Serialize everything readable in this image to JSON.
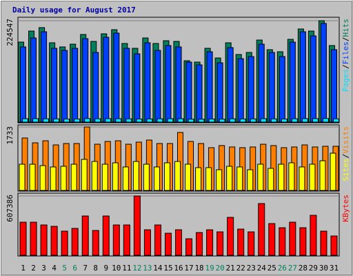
{
  "chart_data": {
    "type": "bar",
    "title": "Daily usage for August 2017",
    "categories": [
      "1",
      "2",
      "3",
      "4",
      "5",
      "6",
      "7",
      "8",
      "9",
      "10",
      "11",
      "12",
      "13",
      "14",
      "15",
      "16",
      "17",
      "18",
      "19",
      "20",
      "21",
      "22",
      "23",
      "24",
      "25",
      "26",
      "27",
      "28",
      "29",
      "30",
      "31"
    ],
    "label_colors": [
      "#000000",
      "#000000",
      "#000000",
      "#000000",
      "#00805c",
      "#00805c",
      "#000000",
      "#000000",
      "#000000",
      "#000000",
      "#000000",
      "#00805c",
      "#00805c",
      "#000000",
      "#000000",
      "#000000",
      "#000000",
      "#000000",
      "#00805c",
      "#00805c",
      "#000000",
      "#000000",
      "#000000",
      "#000000",
      "#000000",
      "#00805c",
      "#00805c",
      "#000000",
      "#000000",
      "#000000",
      "#000000"
    ],
    "panels": [
      {
        "ylim": [
          0,
          224547
        ],
        "yticks": [
          224547
        ],
        "separator": "/",
        "series": [
          {
            "name": "Pages",
            "color": "#00e0ff",
            "values": [
              7600,
              7800,
              7400,
              7200,
              6800,
              7000,
              7900,
              7500,
              7700,
              7600,
              7300,
              6900,
              7100,
              7400,
              7600,
              7500,
              6600,
              6500,
              6900,
              6700,
              7400,
              7000,
              7100,
              7600,
              7200,
              6900,
              7500,
              7800,
              7900,
              8200,
              7300
            ]
          },
          {
            "name": "Files",
            "color": "#0040ff",
            "values": [
              166498,
              186355,
              200103,
              163443,
              158860,
              163443,
              184828,
              154278,
              187883,
              197048,
              163443,
              151223,
              175663,
              158860,
              169553,
              166498,
              132893,
              126783,
              155805,
              131365,
              164970,
              140530,
              145113,
              172608,
              154278,
              145113,
              177190,
              200103,
              190938,
              218433,
              160388
            ]
          },
          {
            "name": "Hits",
            "color": "#00805c",
            "values": [
              177190,
              201630,
              209268,
              175663,
              166498,
              172608,
              193993,
              178718,
              195520,
              204685,
              174135,
              163443,
              186355,
              174135,
              180245,
              178718,
              135948,
              132893,
              163443,
              142058,
              175663,
              149695,
              154278,
              181773,
              160388,
              155805,
              183300,
              206213,
              201630,
              224547,
              169553
            ]
          }
        ]
      },
      {
        "ylim": [
          0,
          1733
        ],
        "yticks": [
          1733
        ],
        "separator": "/",
        "series": [
          {
            "name": "Sites",
            "color": "#ffff00",
            "values": [
              716,
              716,
              678,
              641,
              659,
              716,
              848,
              791,
              716,
              754,
              641,
              791,
              716,
              641,
              754,
              791,
              716,
              622,
              622,
              565,
              659,
              641,
              565,
              716,
              603,
              716,
              754,
              641,
              716,
              810,
              1017
            ]
          },
          {
            "name": "Visits",
            "color": "#ff8000",
            "values": [
              1432,
              1300,
              1356,
              1243,
              1281,
              1281,
              1733,
              1262,
              1338,
              1356,
              1262,
              1319,
              1375,
              1281,
              1281,
              1583,
              1338,
              1281,
              1168,
              1225,
              1187,
              1168,
              1187,
              1262,
              1225,
              1168,
              1187,
              1243,
              1187,
              1206,
              1206
            ]
          }
        ]
      },
      {
        "ylim": [
          0,
          607386
        ],
        "yticks": [
          607386
        ],
        "separator": "/",
        "series": [
          {
            "name": "KBytes",
            "color": "#ff0000",
            "values": [
              339005,
              339005,
              310754,
              296629,
              247191,
              275441,
              402568,
              254254,
              402568,
              310754,
              310754,
              607386,
              261316,
              310754,
              226003,
              261316,
              169502,
              233066,
              261316,
              240128,
              388443,
              268379,
              240128,
              529695,
              324880,
              282504,
              339005,
              282504,
              409631,
              247191,
              197753
            ]
          }
        ]
      }
    ]
  }
}
